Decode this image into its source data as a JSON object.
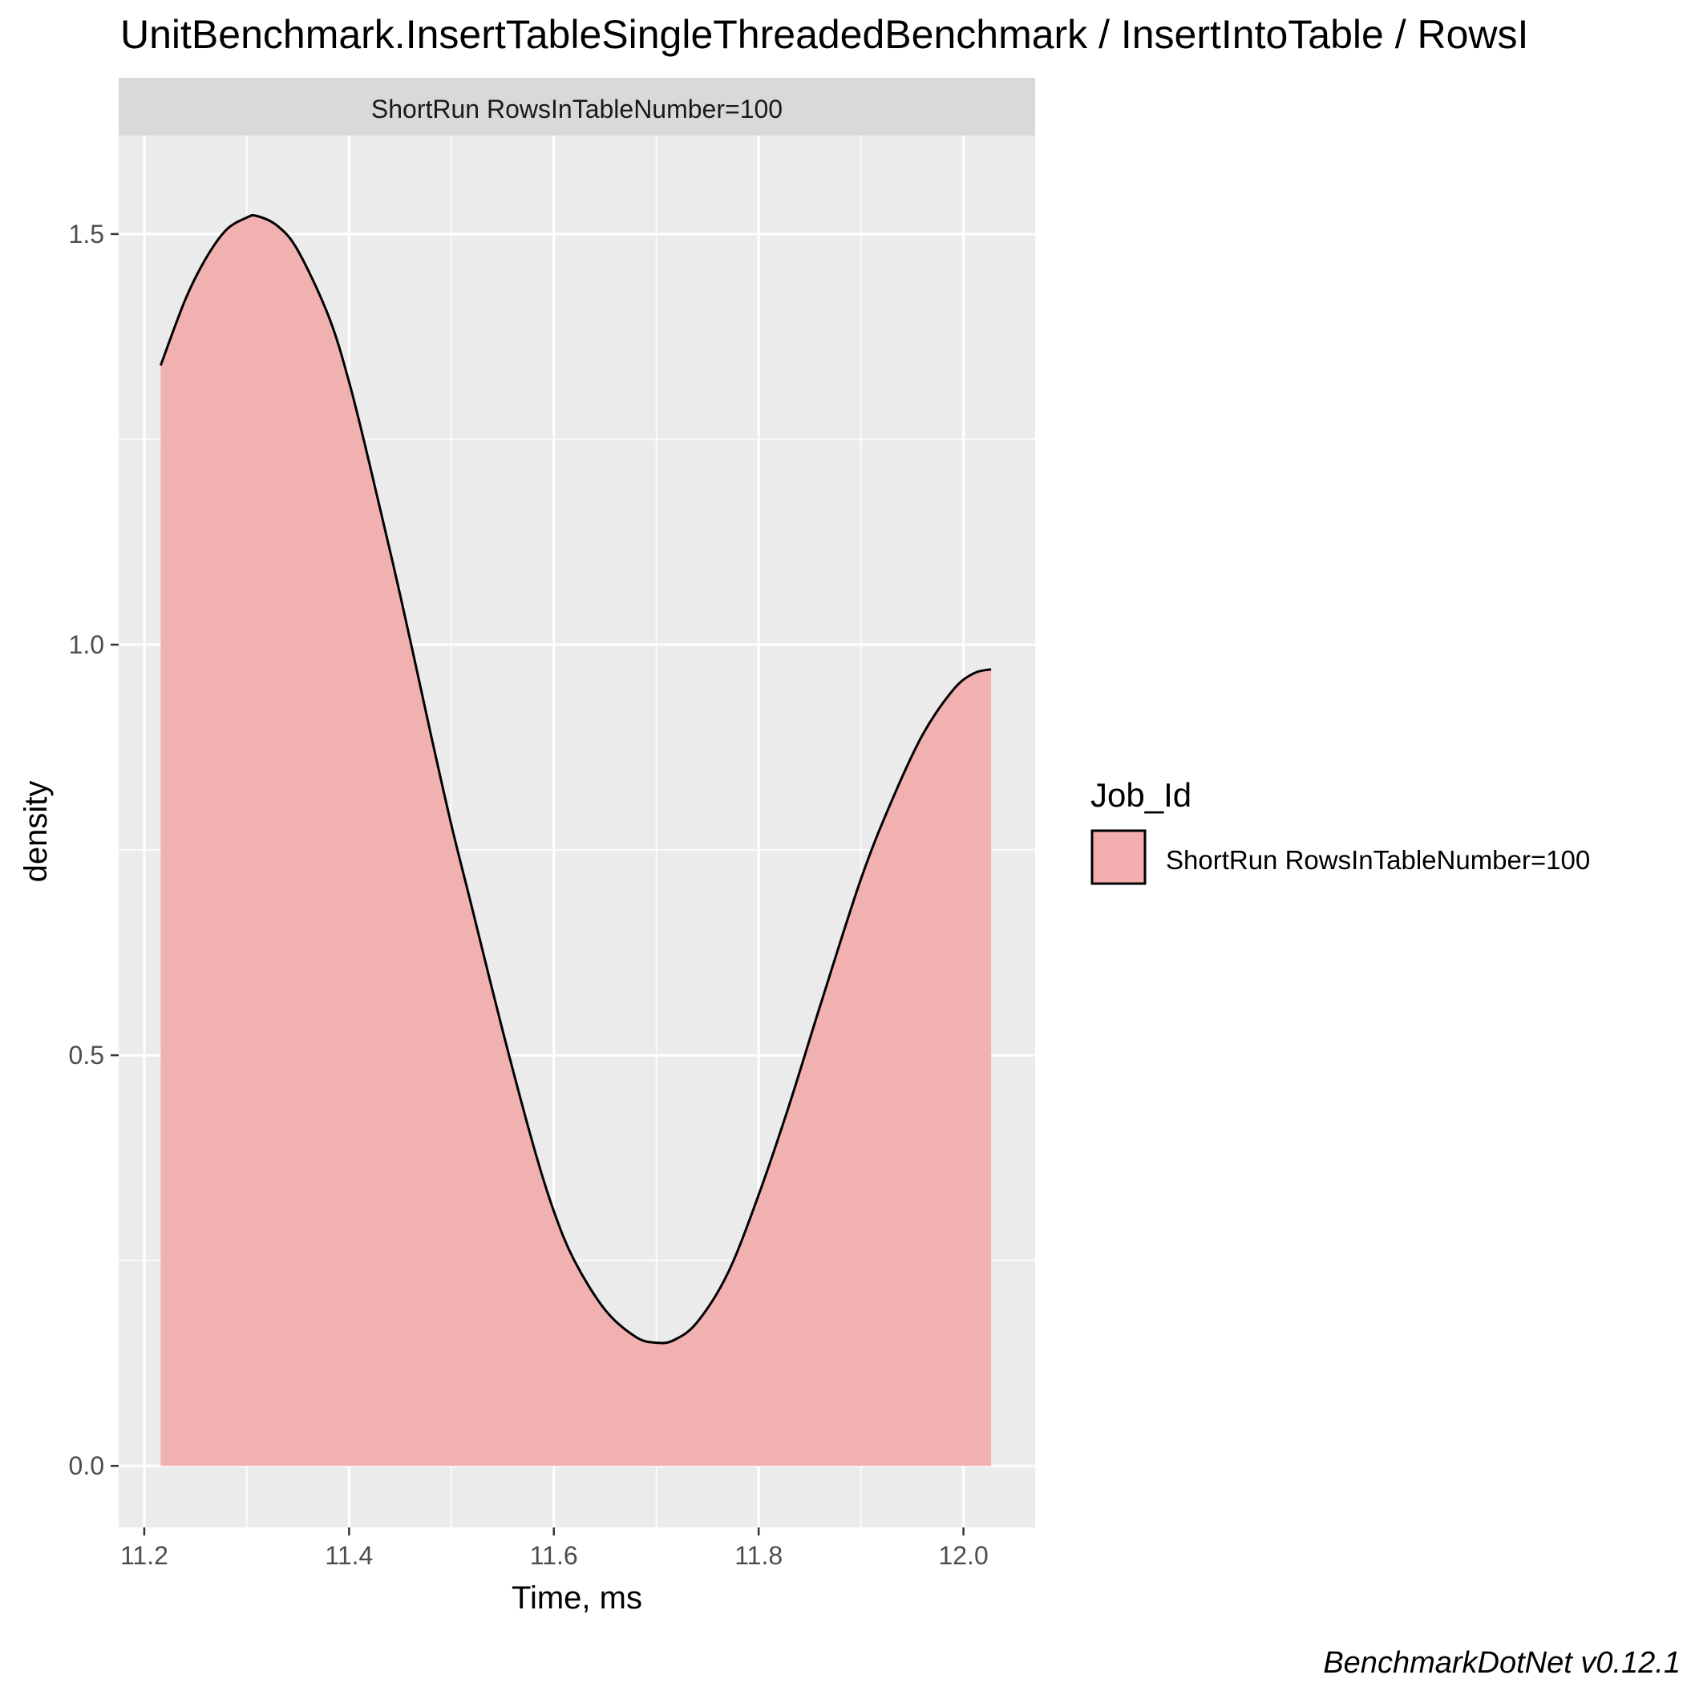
{
  "chart_data": {
    "type": "area",
    "title": "UnitBenchmark.InsertTableSingleThreadedBenchmark / InsertIntoTable / RowsI",
    "facet_label": "ShortRun RowsInTableNumber=100",
    "xlabel": "Time, ms",
    "ylabel": "density",
    "xlim": [
      11.175,
      12.07
    ],
    "ylim": [
      -0.075,
      1.62
    ],
    "x_ticks": [
      11.2,
      11.4,
      11.6,
      11.8,
      12.0
    ],
    "x_tick_labels": [
      "11.2",
      "11.4",
      "11.6",
      "11.8",
      "12.0"
    ],
    "y_ticks": [
      0.0,
      0.5,
      1.0,
      1.5
    ],
    "y_tick_labels": [
      "0.0",
      "0.5",
      "1.0",
      "1.5"
    ],
    "series": [
      {
        "name": "ShortRun RowsInTableNumber=100",
        "x": [
          11.216,
          11.24,
          11.26,
          11.28,
          11.3,
          11.31,
          11.33,
          11.35,
          11.38,
          11.4,
          11.42,
          11.45,
          11.48,
          11.5,
          11.52,
          11.55,
          11.58,
          11.6,
          11.62,
          11.65,
          11.68,
          11.7,
          11.717,
          11.74,
          11.77,
          11.8,
          11.83,
          11.86,
          11.9,
          11.93,
          11.96,
          11.99,
          12.01,
          12.027
        ],
        "y": [
          1.34,
          1.42,
          1.47,
          1.505,
          1.52,
          1.522,
          1.51,
          1.48,
          1.4,
          1.32,
          1.22,
          1.06,
          0.89,
          0.78,
          0.68,
          0.53,
          0.39,
          0.31,
          0.25,
          0.19,
          0.157,
          0.15,
          0.153,
          0.175,
          0.235,
          0.33,
          0.44,
          0.56,
          0.715,
          0.81,
          0.89,
          0.945,
          0.965,
          0.97
        ]
      }
    ],
    "legend": {
      "title": "Job_Id",
      "entries": [
        "ShortRun RowsInTableNumber=100"
      ],
      "position": "right"
    },
    "caption": "BenchmarkDotNet v0.12.1",
    "grid": true,
    "colors": {
      "fill": "#f2aeae",
      "line": "#000000",
      "panel": "#ebebeb",
      "grid": "#ffffff",
      "strip": "#d9d9d9",
      "text": "#4d4d4d"
    }
  }
}
